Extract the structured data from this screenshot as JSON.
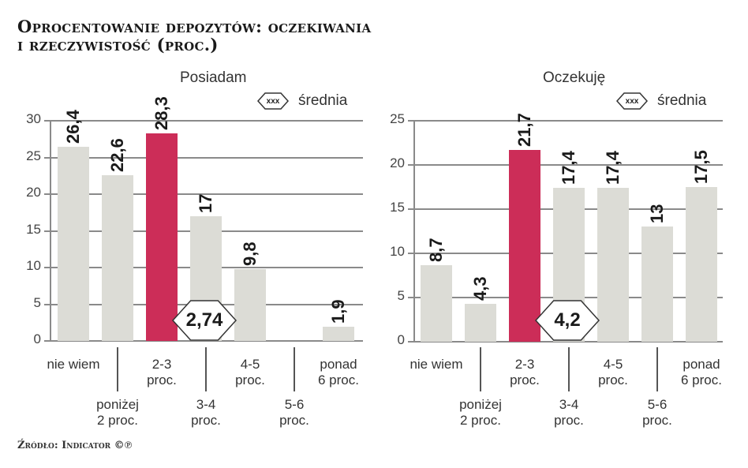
{
  "title": {
    "line1": "Oprocentowanie depozytów: oczekiwania",
    "line2": "i rzeczywistość (proc.)"
  },
  "source": "Źródło: Indicator ©℗",
  "legend": {
    "badge_text": "xxx",
    "label": "średnia"
  },
  "colors": {
    "bar": "#dcdcd6",
    "highlight": "#cc2d58",
    "grid": "#8a8a8a"
  },
  "chart_data": [
    {
      "type": "bar",
      "title": "Posiadam",
      "categories": [
        "nie wiem",
        "poniżej 2 proc.",
        "2-3 proc.",
        "3-4 proc.",
        "4-5 proc.",
        "5-6 proc.",
        "ponad 6 proc."
      ],
      "values": [
        26.4,
        22.6,
        28.3,
        17,
        9.8,
        0,
        1.9
      ],
      "value_labels": [
        "26,4",
        "22,6",
        "28,3",
        "17",
        "9,8",
        "",
        "1,9"
      ],
      "highlight_index": 2,
      "average": "2,74",
      "ylim": [
        0,
        30
      ],
      "yticks": [
        0,
        5,
        10,
        15,
        20,
        25,
        30
      ],
      "xlabel": "",
      "ylabel": "",
      "grid": true
    },
    {
      "type": "bar",
      "title": "Oczekuję",
      "categories": [
        "nie wiem",
        "poniżej 2 proc.",
        "2-3 proc.",
        "3-4 proc.",
        "4-5 proc.",
        "5-6 proc.",
        "ponad 6 proc."
      ],
      "values": [
        8.7,
        4.3,
        21.7,
        17.4,
        17.4,
        13,
        17.5
      ],
      "value_labels": [
        "8,7",
        "4,3",
        "21,7",
        "17,4",
        "17,4",
        "13",
        "17,5"
      ],
      "highlight_index": 2,
      "average": "4,2",
      "ylim": [
        0,
        25
      ],
      "yticks": [
        0,
        5,
        10,
        15,
        20,
        25
      ],
      "xlabel": "",
      "ylabel": "",
      "grid": true
    }
  ],
  "xlabels": {
    "top": [
      {
        "l1": "nie wiem",
        "l2": ""
      },
      {
        "l1": "2-3",
        "l2": "proc."
      },
      {
        "l1": "4-5",
        "l2": "proc."
      },
      {
        "l1": "ponad",
        "l2": "6 proc."
      }
    ],
    "bottom": [
      {
        "l1": "poniżej",
        "l2": "2 proc."
      },
      {
        "l1": "3-4",
        "l2": "proc."
      },
      {
        "l1": "5-6",
        "l2": "proc."
      }
    ]
  }
}
